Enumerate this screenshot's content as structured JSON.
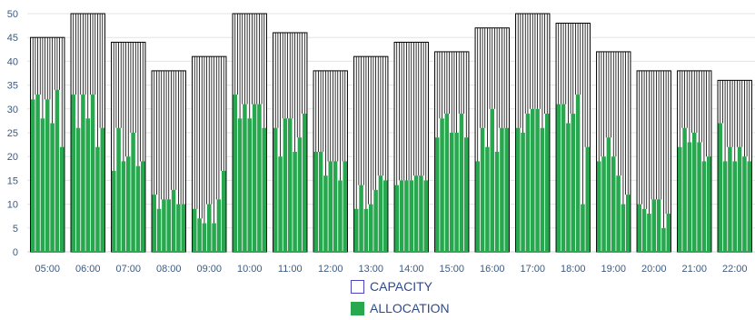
{
  "chart_data": {
    "type": "bar",
    "ylim": [
      0,
      50
    ],
    "yticks": [
      0,
      5,
      10,
      15,
      20,
      25,
      30,
      35,
      40,
      45,
      50
    ],
    "grid": true,
    "legend_position": "bottom",
    "categories": [
      "05:00",
      "06:00",
      "07:00",
      "08:00",
      "09:00",
      "10:00",
      "11:00",
      "12:00",
      "13:00",
      "14:00",
      "15:00",
      "16:00",
      "17:00",
      "18:00",
      "19:00",
      "20:00",
      "21:00",
      "22:00"
    ],
    "series": [
      {
        "name": "CAPACITY",
        "color": "#ffffff",
        "stroke": "#000000",
        "values": [
          45,
          50,
          44,
          38,
          41,
          50,
          46,
          38,
          41,
          44,
          42,
          47,
          50,
          48,
          42,
          38,
          38,
          36
        ]
      },
      {
        "name": "ALLOCATION",
        "color": "#27a84e",
        "values": [
          [
            32,
            33,
            28,
            32,
            27,
            34,
            22
          ],
          [
            33,
            26,
            33,
            28,
            33,
            22,
            26
          ],
          [
            17,
            26,
            19,
            20,
            25,
            18,
            19
          ],
          [
            12,
            9,
            11,
            11,
            13,
            10,
            10
          ],
          [
            9,
            7,
            6,
            10,
            6,
            11,
            17
          ],
          [
            33,
            28,
            31,
            28,
            31,
            31,
            26
          ],
          [
            26,
            20,
            28,
            28,
            21,
            24,
            29
          ],
          [
            21,
            21,
            16,
            19,
            19,
            15,
            19
          ],
          [
            9,
            14,
            9,
            10,
            13,
            16,
            15
          ],
          [
            14,
            15,
            15,
            15,
            16,
            16,
            15
          ],
          [
            24,
            28,
            29,
            25,
            25,
            29,
            24
          ],
          [
            19,
            26,
            22,
            30,
            21,
            26,
            26
          ],
          [
            26,
            25,
            29,
            30,
            30,
            26,
            29
          ],
          [
            31,
            31,
            27,
            29,
            33,
            10,
            22
          ],
          [
            19,
            20,
            24,
            20,
            16,
            10,
            12
          ],
          [
            10,
            9,
            8,
            11,
            11,
            5,
            8
          ],
          [
            22,
            26,
            23,
            25,
            23,
            19,
            20
          ],
          [
            27,
            19,
            22,
            19,
            22,
            20,
            19
          ]
        ]
      }
    ]
  }
}
